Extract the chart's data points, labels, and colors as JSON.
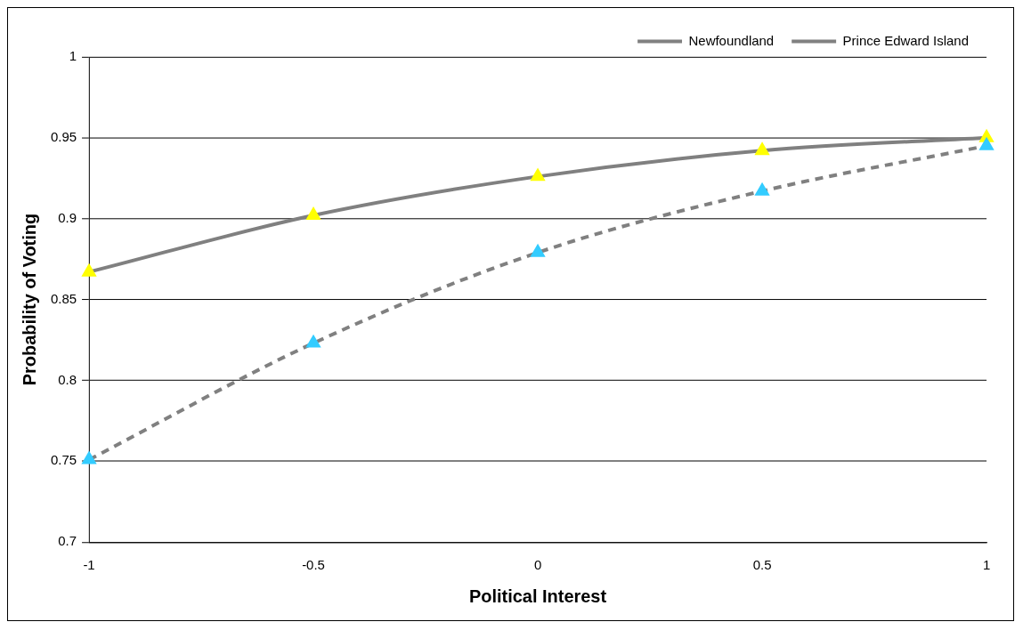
{
  "chart_data": {
    "type": "line",
    "xlabel": "Political Interest",
    "ylabel": "Probability of Voting",
    "categories": [
      "-1",
      "-0.5",
      "0",
      "0.5",
      "1"
    ],
    "series": [
      {
        "name": "Newfoundland",
        "color": "#808080",
        "colors": [
          "#33ccff",
          "#33ccff",
          "#33ccff",
          "#33ccff",
          "#33ccff"
        ],
        "line_style": "dashed",
        "values": [
          0.751,
          0.823,
          0.879,
          0.917,
          0.945
        ]
      },
      {
        "name": "Prince Edward Island",
        "color": "#808080",
        "colors": [
          "#ffff00",
          "#ffff00",
          "#ffff00",
          "#ffff00",
          "#ffff00"
        ],
        "line_style": "solid",
        "values": [
          0.867,
          0.902,
          0.926,
          0.942,
          0.95
        ]
      }
    ],
    "ylim": [
      0.7,
      1
    ],
    "yticks": [
      0.7,
      0.75,
      0.8,
      0.85,
      0.9,
      0.95,
      1
    ],
    "grid": "y",
    "legend": "top right",
    "marker": "triangle"
  }
}
